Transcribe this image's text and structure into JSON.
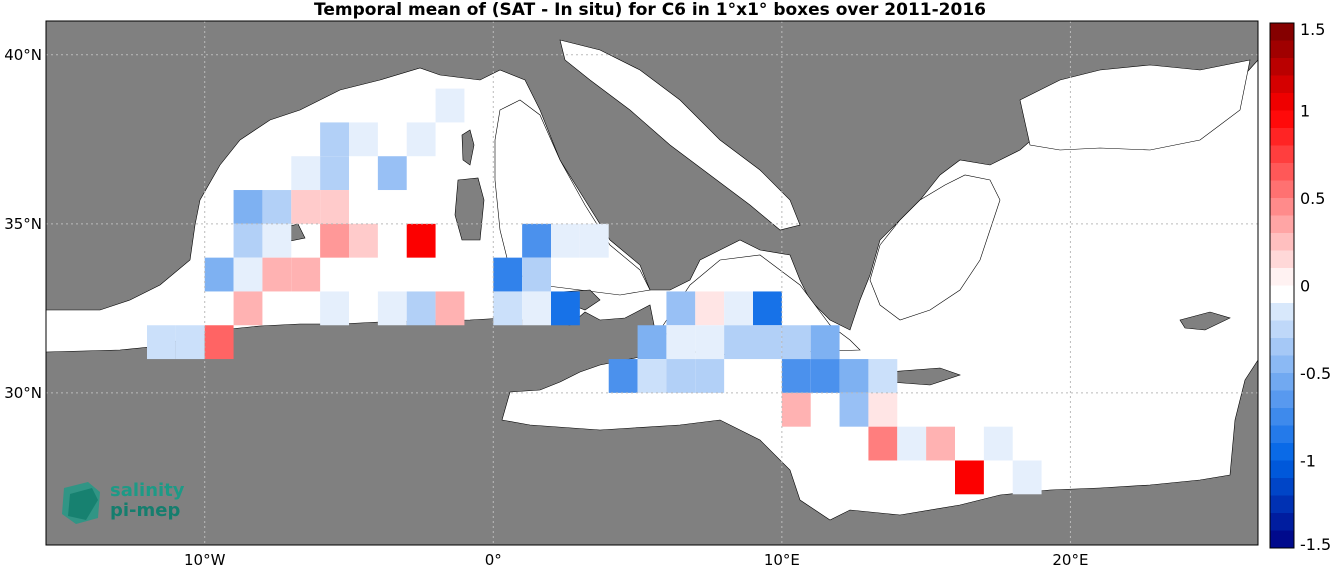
{
  "title": "Temporal mean of (SAT - In situ) for C6 in 1°x1° boxes over 2011-2016",
  "logo": {
    "line1": "salinity",
    "line2": "pi-mep"
  },
  "colors": {
    "ocean": "#ffffff",
    "land": "#808080",
    "coast": "#000000",
    "grid": "#bbbbbb"
  },
  "chart_data": {
    "type": "heatmap",
    "title": "Temporal mean of (SAT - In situ) for C6 in 1°x1° boxes over 2011-2016",
    "xlim": [
      -15.5,
      26.5
    ],
    "ylim": [
      25.5,
      41
    ],
    "x_ticks": [
      {
        "value": -10,
        "label": "10°W"
      },
      {
        "value": 0,
        "label": "0°"
      },
      {
        "value": 10,
        "label": "10°E"
      },
      {
        "value": 20,
        "label": "20°E"
      }
    ],
    "y_ticks": [
      {
        "value": 30,
        "label": "30°N"
      },
      {
        "value": 35,
        "label": "35°N"
      },
      {
        "value": 40,
        "label": "40°N"
      }
    ],
    "colorbar": {
      "min": -1.5,
      "max": 1.5,
      "step": 0.1,
      "ticks": [
        {
          "value": 1.5,
          "label": "1.5"
        },
        {
          "value": 1,
          "label": "1"
        },
        {
          "value": 0.5,
          "label": "0.5"
        },
        {
          "value": 0,
          "label": "0"
        },
        {
          "value": -0.5,
          "label": "-0.5"
        },
        {
          "value": -1,
          "label": "-1"
        },
        {
          "value": -1.5,
          "label": "-1.5"
        }
      ]
    },
    "cells": [
      {
        "lon": -1.5,
        "lat": 38.5,
        "value": -0.1
      },
      {
        "lon": -5.5,
        "lat": 37.5,
        "value": -0.3
      },
      {
        "lon": -4.5,
        "lat": 37.5,
        "value": -0.1
      },
      {
        "lon": -2.5,
        "lat": 37.5,
        "value": -0.1
      },
      {
        "lon": -6.5,
        "lat": 36.5,
        "value": -0.1
      },
      {
        "lon": -5.5,
        "lat": 36.5,
        "value": -0.3
      },
      {
        "lon": -3.5,
        "lat": 36.5,
        "value": -0.4
      },
      {
        "lon": -8.5,
        "lat": 35.5,
        "value": -0.5
      },
      {
        "lon": -7.5,
        "lat": 35.5,
        "value": -0.3
      },
      {
        "lon": -6.5,
        "lat": 35.5,
        "value": 0.2
      },
      {
        "lon": -5.5,
        "lat": 35.5,
        "value": 0.2
      },
      {
        "lon": -8.5,
        "lat": 34.5,
        "value": -0.3
      },
      {
        "lon": -7.5,
        "lat": 34.5,
        "value": -0.1
      },
      {
        "lon": -5.5,
        "lat": 34.5,
        "value": 0.4
      },
      {
        "lon": -4.5,
        "lat": 34.5,
        "value": 0.2
      },
      {
        "lon": -2.5,
        "lat": 34.5,
        "value": 1.0
      },
      {
        "lon": 1.5,
        "lat": 34.5,
        "value": -0.7
      },
      {
        "lon": 2.5,
        "lat": 34.5,
        "value": -0.1
      },
      {
        "lon": 3.5,
        "lat": 34.5,
        "value": -0.1
      },
      {
        "lon": -9.5,
        "lat": 33.5,
        "value": -0.5
      },
      {
        "lon": -8.5,
        "lat": 33.5,
        "value": -0.1
      },
      {
        "lon": -7.5,
        "lat": 33.5,
        "value": 0.3
      },
      {
        "lon": -6.5,
        "lat": 33.5,
        "value": 0.3
      },
      {
        "lon": 0.5,
        "lat": 33.5,
        "value": -0.8
      },
      {
        "lon": 1.5,
        "lat": 33.5,
        "value": -0.3
      },
      {
        "lon": -8.5,
        "lat": 32.5,
        "value": 0.3
      },
      {
        "lon": -5.5,
        "lat": 32.5,
        "value": -0.1
      },
      {
        "lon": -3.5,
        "lat": 32.5,
        "value": -0.1
      },
      {
        "lon": -2.5,
        "lat": 32.5,
        "value": -0.3
      },
      {
        "lon": -1.5,
        "lat": 32.5,
        "value": 0.3
      },
      {
        "lon": 0.5,
        "lat": 32.5,
        "value": -0.2
      },
      {
        "lon": 1.5,
        "lat": 32.5,
        "value": -0.1
      },
      {
        "lon": 2.5,
        "lat": 32.5,
        "value": -0.9
      },
      {
        "lon": 6.5,
        "lat": 32.5,
        "value": -0.4
      },
      {
        "lon": 7.5,
        "lat": 32.5,
        "value": 0.1
      },
      {
        "lon": 8.5,
        "lat": 32.5,
        "value": -0.1
      },
      {
        "lon": 9.5,
        "lat": 32.5,
        "value": -0.9
      },
      {
        "lon": -11.5,
        "lat": 31.5,
        "value": -0.2
      },
      {
        "lon": -10.5,
        "lat": 31.5,
        "value": -0.2
      },
      {
        "lon": -9.5,
        "lat": 31.5,
        "value": 0.6
      },
      {
        "lon": 5.5,
        "lat": 31.5,
        "value": -0.5
      },
      {
        "lon": 6.5,
        "lat": 31.5,
        "value": -0.1
      },
      {
        "lon": 7.5,
        "lat": 31.5,
        "value": -0.1
      },
      {
        "lon": 8.5,
        "lat": 31.5,
        "value": -0.3
      },
      {
        "lon": 9.5,
        "lat": 31.5,
        "value": -0.3
      },
      {
        "lon": 10.5,
        "lat": 31.5,
        "value": -0.3
      },
      {
        "lon": 11.5,
        "lat": 31.5,
        "value": -0.5
      },
      {
        "lon": 4.5,
        "lat": 30.5,
        "value": -0.7
      },
      {
        "lon": 5.5,
        "lat": 30.5,
        "value": -0.2
      },
      {
        "lon": 6.5,
        "lat": 30.5,
        "value": -0.3
      },
      {
        "lon": 7.5,
        "lat": 30.5,
        "value": -0.3
      },
      {
        "lon": 10.5,
        "lat": 30.5,
        "value": -0.7
      },
      {
        "lon": 11.5,
        "lat": 30.5,
        "value": -0.7
      },
      {
        "lon": 12.5,
        "lat": 30.5,
        "value": -0.5
      },
      {
        "lon": 13.5,
        "lat": 30.5,
        "value": -0.2
      },
      {
        "lon": 10.5,
        "lat": 29.5,
        "value": 0.3
      },
      {
        "lon": 12.5,
        "lat": 29.5,
        "value": -0.4
      },
      {
        "lon": 13.5,
        "lat": 29.5,
        "value": 0.1
      },
      {
        "lon": 13.5,
        "lat": 28.5,
        "value": 0.5
      },
      {
        "lon": 14.5,
        "lat": 28.5,
        "value": -0.1
      },
      {
        "lon": 15.5,
        "lat": 28.5,
        "value": 0.3
      },
      {
        "lon": 17.5,
        "lat": 28.5,
        "value": -0.1
      },
      {
        "lon": 16.5,
        "lat": 27.5,
        "value": 1.0
      },
      {
        "lon": 18.5,
        "lat": 27.5,
        "value": -0.1
      }
    ]
  }
}
